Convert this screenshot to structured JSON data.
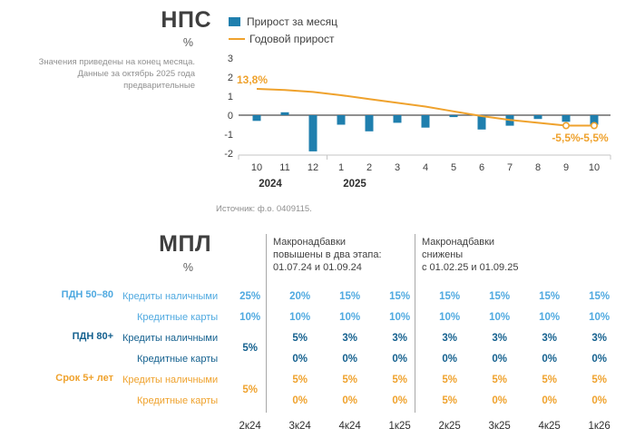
{
  "colors": {
    "bar_blue": "#1f7fae",
    "line_orange": "#efa22d",
    "light_blue": "#4fa9e0",
    "dark_blue": "#15618f",
    "orange": "#efa22d",
    "grey_text": "#909090",
    "dark_text": "#3f3f3f"
  },
  "nps": {
    "title": "НПС",
    "unit": "%",
    "legend": {
      "bar": "Прирост за месяц",
      "line": "Годовой прирост"
    },
    "note": "Значения приведены на конец месяца.\nДанные за октябрь 2025 года\nпредварительные",
    "source": "Источник: ф.о. 0409115."
  },
  "mpl": {
    "title": "МПЛ",
    "unit": "%",
    "group_headers": [
      "Макронадбавки\nповышены в два этапа:\n01.07.24 и 01.09.24",
      "Макронадбавки\nснижены\nс 01.02.25 и 01.09.25"
    ]
  },
  "chart_data": [
    {
      "type": "bar+line",
      "title": "НПС",
      "unit": "%",
      "categories": [
        "10",
        "11",
        "12",
        "1",
        "2",
        "3",
        "4",
        "5",
        "6",
        "7",
        "8",
        "9",
        "10"
      ],
      "year_labels": [
        "2024",
        "2025"
      ],
      "left_axis": {
        "ticks": [
          3,
          2,
          1,
          0,
          -1,
          -2
        ],
        "lim": [
          -2.5,
          3
        ]
      },
      "right_axis_scale": 10,
      "series": [
        {
          "name": "Прирост за месяц",
          "type": "bar",
          "values": [
            -0.3,
            0.15,
            -1.9,
            -0.5,
            -0.85,
            -0.4,
            -0.65,
            -0.1,
            -0.75,
            -0.55,
            -0.2,
            -0.35,
            -0.5
          ]
        },
        {
          "name": "Годовой прирост",
          "type": "line",
          "values": [
            13.8,
            13.2,
            12.2,
            10.5,
            8.5,
            6.5,
            4.5,
            2.0,
            -0.5,
            -2.5,
            -4.0,
            -5.5,
            -5.5
          ]
        }
      ],
      "line_markers": [
        11,
        12
      ],
      "annotations": [
        {
          "series": 1,
          "index": 0,
          "text": "13,8%",
          "position": "above-left"
        },
        {
          "series": 1,
          "index": 11,
          "text": "-5,5%",
          "position": "below"
        },
        {
          "series": 1,
          "index": 12,
          "text": "-5,5%",
          "position": "below"
        }
      ],
      "grid": false,
      "legend_position": "top"
    },
    {
      "type": "table",
      "title": "МПЛ",
      "columns": [
        "2к24",
        "3к24",
        "4к24",
        "1к25",
        "2к25",
        "3к25",
        "4к25",
        "1к26"
      ],
      "row_groups": [
        {
          "label": "ПДН 50–80",
          "color_key": "light_blue",
          "merged_first": null,
          "rows": [
            {
              "product": "Кредиты наличными",
              "values": [
                "25%",
                "20%",
                "15%",
                "15%",
                "15%",
                "15%",
                "15%",
                "15%"
              ]
            },
            {
              "product": "Кредитные карты",
              "values": [
                "10%",
                "10%",
                "10%",
                "10%",
                "10%",
                "10%",
                "10%",
                "10%"
              ]
            }
          ]
        },
        {
          "label": "ПДН 80+",
          "color_key": "dark_blue",
          "merged_first": "5%",
          "rows": [
            {
              "product": "Кредиты наличными",
              "values": [
                null,
                "5%",
                "3%",
                "3%",
                "3%",
                "3%",
                "3%",
                "3%"
              ]
            },
            {
              "product": "Кредитные карты",
              "values": [
                null,
                "0%",
                "0%",
                "0%",
                "0%",
                "0%",
                "0%",
                "0%"
              ]
            }
          ]
        },
        {
          "label": "Срок 5+ лет",
          "color_key": "orange",
          "merged_first": "5%",
          "rows": [
            {
              "product": "Кредиты наличными",
              "values": [
                null,
                "5%",
                "5%",
                "5%",
                "5%",
                "5%",
                "5%",
                "5%"
              ]
            },
            {
              "product": "Кредитные карты",
              "values": [
                null,
                "0%",
                "0%",
                "0%",
                "5%",
                "0%",
                "0%",
                "0%"
              ]
            }
          ]
        }
      ]
    }
  ]
}
